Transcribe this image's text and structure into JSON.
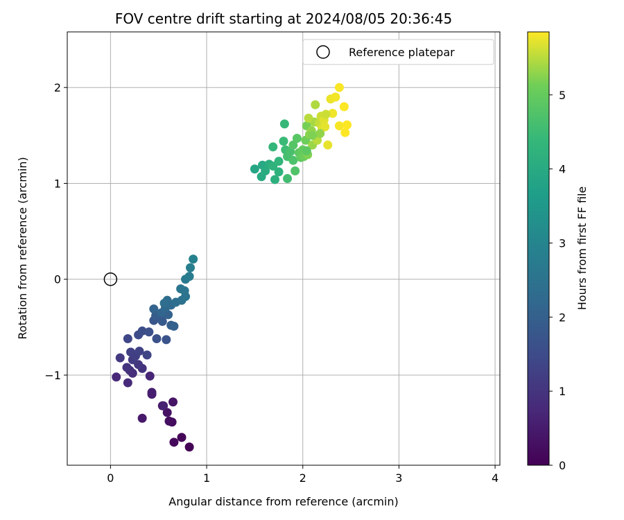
{
  "chart_data": {
    "type": "scatter",
    "title": "FOV centre drift starting at 2024/08/05 20:36:45",
    "xlabel": "Angular distance from reference (arcmin)",
    "ylabel": "Rotation from reference (arcmin)",
    "xlim": [
      -0.45,
      4.05
    ],
    "ylim": [
      -1.94,
      2.58
    ],
    "xticks": [
      0,
      1,
      2,
      3,
      4
    ],
    "yticks": [
      -1,
      0,
      1,
      2
    ],
    "grid": true,
    "legend": {
      "position": "top-right",
      "entries": [
        "Reference platepar"
      ]
    },
    "reference_point": {
      "x": 0,
      "y": 0,
      "label": "Reference platepar"
    },
    "colorbar": {
      "label": "Hours from first FF file",
      "min": 0,
      "max": 5.85,
      "ticks": [
        0,
        1,
        2,
        3,
        4,
        5
      ],
      "colormap": "viridis"
    },
    "series": [
      {
        "points": [
          [
            0.82,
            -1.75,
            0.05
          ],
          [
            0.74,
            -1.65,
            0.1
          ],
          [
            0.66,
            -1.7,
            0.15
          ],
          [
            0.64,
            -1.49,
            0.2
          ],
          [
            0.61,
            -1.48,
            0.25
          ],
          [
            0.59,
            -1.39,
            0.3
          ],
          [
            0.65,
            -1.28,
            0.35
          ],
          [
            0.54,
            -1.32,
            0.4
          ],
          [
            0.33,
            -1.45,
            0.45
          ],
          [
            0.43,
            -1.2,
            0.5
          ],
          [
            0.43,
            -1.18,
            0.55
          ],
          [
            0.55,
            -1.32,
            0.6
          ],
          [
            0.41,
            -1.01,
            0.7
          ],
          [
            0.06,
            -1.02,
            0.75
          ],
          [
            0.18,
            -1.08,
            0.8
          ],
          [
            0.23,
            -0.98,
            0.85
          ],
          [
            0.2,
            -0.95,
            0.9
          ],
          [
            0.33,
            -0.93,
            0.95
          ],
          [
            0.17,
            -0.92,
            1.0
          ],
          [
            0.29,
            -0.89,
            1.05
          ],
          [
            0.1,
            -0.82,
            1.1
          ],
          [
            0.23,
            -0.84,
            1.15
          ],
          [
            0.26,
            -0.8,
            1.2
          ],
          [
            0.21,
            -0.76,
            1.25
          ],
          [
            0.3,
            -0.75,
            1.3
          ],
          [
            0.38,
            -0.79,
            1.35
          ],
          [
            0.18,
            -0.62,
            1.4
          ],
          [
            0.29,
            -0.58,
            1.5
          ],
          [
            0.33,
            -0.54,
            1.55
          ],
          [
            0.4,
            -0.55,
            1.6
          ],
          [
            0.48,
            -0.62,
            1.65
          ],
          [
            0.58,
            -0.63,
            1.7
          ],
          [
            0.45,
            -0.43,
            1.75
          ],
          [
            0.52,
            -0.41,
            1.8
          ],
          [
            0.54,
            -0.44,
            1.85
          ],
          [
            0.47,
            -0.38,
            1.9
          ],
          [
            0.63,
            -0.48,
            1.95
          ],
          [
            0.66,
            -0.49,
            2.0
          ],
          [
            0.6,
            -0.37,
            2.05
          ],
          [
            0.45,
            -0.31,
            2.1
          ],
          [
            0.53,
            -0.35,
            2.15
          ],
          [
            0.57,
            -0.3,
            2.2
          ],
          [
            0.63,
            -0.27,
            2.25
          ],
          [
            0.59,
            -0.22,
            2.3
          ],
          [
            0.56,
            -0.25,
            2.35
          ],
          [
            0.68,
            -0.24,
            2.4
          ],
          [
            0.74,
            -0.22,
            2.45
          ],
          [
            0.78,
            -0.18,
            2.5
          ],
          [
            0.73,
            -0.1,
            2.55
          ],
          [
            0.77,
            -0.12,
            2.6
          ],
          [
            0.78,
            0.0,
            2.7
          ],
          [
            0.82,
            0.03,
            2.75
          ],
          [
            0.83,
            0.12,
            2.8
          ],
          [
            0.86,
            0.21,
            2.9
          ],
          [
            1.5,
            1.15,
            3.9
          ],
          [
            1.58,
            1.19,
            3.95
          ],
          [
            1.57,
            1.07,
            4.0
          ],
          [
            1.61,
            1.13,
            4.05
          ],
          [
            1.65,
            1.2,
            4.1
          ],
          [
            1.71,
            1.04,
            4.15
          ],
          [
            1.75,
            1.12,
            4.2
          ],
          [
            1.69,
            1.18,
            4.25
          ],
          [
            1.75,
            1.23,
            4.3
          ],
          [
            1.69,
            1.38,
            4.35
          ],
          [
            1.81,
            1.62,
            4.4
          ],
          [
            1.8,
            1.44,
            4.45
          ],
          [
            1.82,
            1.35,
            4.5
          ],
          [
            1.84,
            1.05,
            4.55
          ],
          [
            1.84,
            1.28,
            4.6
          ],
          [
            1.87,
            1.33,
            4.65
          ],
          [
            1.9,
            1.24,
            4.7
          ],
          [
            1.92,
            1.13,
            4.75
          ],
          [
            1.9,
            1.4,
            4.8
          ],
          [
            1.94,
            1.47,
            4.85
          ],
          [
            1.96,
            1.32,
            4.9
          ],
          [
            1.98,
            1.27,
            4.95
          ],
          [
            2.0,
            1.35,
            5.0
          ],
          [
            2.01,
            1.28,
            5.05
          ],
          [
            2.03,
            1.45,
            5.1
          ],
          [
            2.04,
            1.6,
            5.15
          ],
          [
            2.05,
            1.3,
            5.2
          ],
          [
            2.07,
            1.51,
            5.25
          ],
          [
            2.09,
            1.55,
            5.3
          ],
          [
            2.1,
            1.4,
            5.35
          ],
          [
            2.12,
            1.64,
            5.4
          ],
          [
            2.13,
            1.82,
            5.45
          ],
          [
            2.15,
            1.45,
            5.5
          ],
          [
            2.17,
            1.63,
            5.55
          ],
          [
            2.19,
            1.7,
            5.6
          ],
          [
            2.2,
            1.58,
            5.65
          ],
          [
            2.22,
            1.66,
            5.7
          ],
          [
            2.23,
            1.59,
            5.72
          ],
          [
            2.26,
            1.4,
            5.74
          ],
          [
            2.29,
            1.88,
            5.76
          ],
          [
            2.31,
            1.73,
            5.78
          ],
          [
            2.34,
            1.9,
            5.8
          ],
          [
            2.38,
            1.6,
            5.82
          ],
          [
            2.38,
            2.0,
            5.83
          ],
          [
            2.43,
            1.8,
            5.84
          ],
          [
            2.44,
            1.53,
            5.85
          ],
          [
            2.46,
            1.61,
            5.85
          ],
          [
            2.06,
            1.68,
            5.5
          ],
          [
            2.24,
            1.72,
            5.6
          ],
          [
            2.18,
            1.52,
            5.3
          ],
          [
            2.1,
            1.5,
            5.2
          ],
          [
            2.04,
            1.34,
            4.9
          ]
        ]
      }
    ]
  }
}
